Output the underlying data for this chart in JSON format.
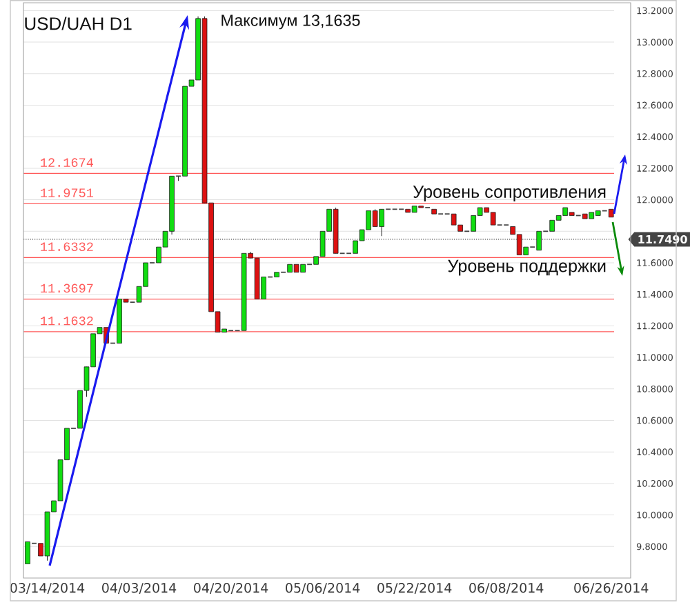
{
  "chart_data": {
    "type": "candlestick",
    "title": "USD/UAH D1",
    "categories": [
      null,
      null,
      null,
      "03/14/2014",
      null,
      null,
      null,
      null,
      null,
      null,
      null,
      null,
      null,
      null,
      null,
      null,
      null,
      "04/03/2014",
      null,
      null,
      null,
      null,
      null,
      null,
      null,
      null,
      null,
      null,
      null,
      null,
      null,
      "04/20/2014",
      null,
      null,
      null,
      null,
      null,
      null,
      null,
      null,
      null,
      null,
      null,
      null,
      null,
      "05/06/2014",
      null,
      null,
      null,
      null,
      null,
      null,
      null,
      null,
      null,
      null,
      null,
      null,
      null,
      "05/22/2014",
      null,
      null,
      null,
      null,
      null,
      null,
      null,
      null,
      null,
      null,
      null,
      null,
      null,
      "06/08/2014",
      null,
      null,
      null,
      null,
      null,
      null,
      null,
      null,
      null,
      null,
      null,
      null,
      null,
      null,
      null,
      "06/26/2014"
    ],
    "ohlc": [
      [
        9.69,
        9.83,
        9.69,
        9.83
      ],
      [
        9.82,
        9.82,
        9.82,
        9.82
      ],
      [
        9.82,
        9.82,
        9.74,
        9.74
      ],
      [
        9.74,
        10.02,
        9.71,
        10.02
      ],
      [
        10.02,
        10.09,
        10.02,
        10.09
      ],
      [
        10.09,
        10.35,
        10.09,
        10.35
      ],
      [
        10.35,
        10.55,
        10.35,
        10.55
      ],
      [
        10.55,
        10.55,
        10.55,
        10.55
      ],
      [
        10.55,
        10.79,
        10.55,
        10.79
      ],
      [
        10.79,
        10.94,
        10.75,
        10.94
      ],
      [
        10.94,
        11.15,
        10.94,
        11.15
      ],
      [
        11.15,
        11.19,
        11.15,
        11.19
      ],
      [
        11.19,
        11.19,
        11.09,
        11.09
      ],
      [
        11.09,
        11.09,
        11.09,
        11.09
      ],
      [
        11.09,
        11.37,
        11.09,
        11.37
      ],
      [
        11.37,
        11.37,
        11.35,
        11.35
      ],
      [
        11.35,
        11.35,
        11.35,
        11.35
      ],
      [
        11.35,
        11.45,
        11.35,
        11.45
      ],
      [
        11.45,
        11.6,
        11.45,
        11.6
      ],
      [
        11.6,
        11.6,
        11.6,
        11.6
      ],
      [
        11.6,
        11.7,
        11.6,
        11.7
      ],
      [
        11.7,
        11.8,
        11.7,
        11.8
      ],
      [
        11.8,
        12.15,
        11.78,
        12.15
      ],
      [
        12.15,
        12.15,
        12.12,
        12.15
      ],
      [
        12.15,
        12.72,
        12.15,
        12.72
      ],
      [
        12.72,
        12.76,
        12.72,
        12.76
      ],
      [
        12.76,
        13.1635,
        12.76,
        13.15
      ],
      [
        13.15,
        13.1635,
        11.98,
        11.98
      ],
      [
        11.98,
        11.98,
        11.29,
        11.29
      ],
      [
        11.29,
        11.29,
        11.16,
        11.16
      ],
      [
        11.16,
        11.18,
        11.16,
        11.18
      ],
      [
        11.17,
        11.17,
        11.17,
        11.17
      ],
      [
        11.17,
        11.17,
        11.17,
        11.17
      ],
      [
        11.17,
        11.66,
        11.17,
        11.66
      ],
      [
        11.66,
        11.67,
        11.63,
        11.63
      ],
      [
        11.63,
        11.63,
        11.37,
        11.37
      ],
      [
        11.37,
        11.51,
        11.37,
        11.51
      ],
      [
        11.51,
        11.51,
        11.51,
        11.51
      ],
      [
        11.51,
        11.54,
        11.51,
        11.54
      ],
      [
        11.54,
        11.54,
        11.54,
        11.54
      ],
      [
        11.54,
        11.59,
        11.54,
        11.59
      ],
      [
        11.59,
        11.59,
        11.54,
        11.54
      ],
      [
        11.54,
        11.59,
        11.54,
        11.59
      ],
      [
        11.59,
        11.59,
        11.59,
        11.59
      ],
      [
        11.59,
        11.64,
        11.59,
        11.64
      ],
      [
        11.64,
        11.8,
        11.64,
        11.8
      ],
      [
        11.8,
        11.94,
        11.8,
        11.94
      ],
      [
        11.94,
        11.95,
        11.66,
        11.66
      ],
      [
        11.66,
        11.66,
        11.66,
        11.66
      ],
      [
        11.66,
        11.66,
        11.66,
        11.66
      ],
      [
        11.66,
        11.74,
        11.66,
        11.74
      ],
      [
        11.74,
        11.81,
        11.74,
        11.81
      ],
      [
        11.81,
        11.93,
        11.81,
        11.93
      ],
      [
        11.93,
        11.94,
        11.83,
        11.83
      ],
      [
        11.83,
        11.94,
        11.77,
        11.94
      ],
      [
        11.94,
        11.94,
        11.94,
        11.94
      ],
      [
        11.94,
        11.94,
        11.94,
        11.94
      ],
      [
        11.94,
        11.94,
        11.94,
        11.94
      ],
      [
        11.94,
        11.94,
        11.92,
        11.92
      ],
      [
        11.92,
        11.96,
        11.92,
        11.96
      ],
      [
        11.96,
        11.96,
        11.95,
        11.95
      ],
      [
        11.95,
        11.95,
        11.95,
        11.95
      ],
      [
        11.94,
        11.94,
        11.91,
        11.91
      ],
      [
        11.91,
        11.91,
        11.91,
        11.91
      ],
      [
        11.91,
        11.91,
        11.91,
        11.91
      ],
      [
        11.91,
        11.91,
        11.84,
        11.84
      ],
      [
        11.84,
        11.84,
        11.8,
        11.8
      ],
      [
        11.8,
        11.8,
        11.8,
        11.8
      ],
      [
        11.8,
        11.9,
        11.8,
        11.9
      ],
      [
        11.9,
        11.95,
        11.9,
        11.95
      ],
      [
        11.95,
        11.95,
        11.92,
        11.92
      ],
      [
        11.92,
        11.92,
        11.84,
        11.84
      ],
      [
        11.84,
        11.84,
        11.84,
        11.84
      ],
      [
        11.84,
        11.84,
        11.84,
        11.84
      ],
      [
        11.83,
        11.83,
        11.78,
        11.78
      ],
      [
        11.78,
        11.78,
        11.65,
        11.65
      ],
      [
        11.65,
        11.7,
        11.65,
        11.7
      ],
      [
        11.7,
        11.7,
        11.7,
        11.7
      ],
      [
        11.68,
        11.8,
        11.68,
        11.8
      ],
      [
        11.8,
        11.8,
        11.8,
        11.8
      ],
      [
        11.8,
        11.87,
        11.8,
        11.87
      ],
      [
        11.87,
        11.9,
        11.87,
        11.9
      ],
      [
        11.9,
        11.95,
        11.9,
        11.95
      ],
      [
        11.92,
        11.92,
        11.9,
        11.9
      ],
      [
        11.9,
        11.9,
        11.9,
        11.9
      ],
      [
        11.91,
        11.91,
        11.88,
        11.88
      ],
      [
        11.88,
        11.92,
        11.88,
        11.92
      ],
      [
        11.9,
        11.93,
        11.9,
        11.93
      ],
      [
        11.93,
        11.93,
        11.93,
        11.93
      ],
      [
        11.94,
        11.94,
        11.89,
        11.89
      ]
    ],
    "colors": [
      "#11dd11",
      "#444444",
      "#dd1111",
      "#11dd11",
      "#11dd11",
      "#11dd11",
      "#11dd11",
      "#444444",
      "#11dd11",
      "#11dd11",
      "#11dd11",
      "#11dd11",
      "#dd1111",
      "#444444",
      "#11dd11",
      "#dd1111",
      "#444444",
      "#11dd11",
      "#11dd11",
      "#444444",
      "#11dd11",
      "#11dd11",
      "#11dd11",
      "#444444",
      "#11dd11",
      "#11dd11",
      "#11dd11",
      "#dd1111",
      "#dd1111",
      "#dd1111",
      "#11dd11",
      "#444444",
      "#444444",
      "#11dd11",
      "#dd1111",
      "#dd1111",
      "#11dd11",
      "#444444",
      "#11dd11",
      "#444444",
      "#11dd11",
      "#dd1111",
      "#11dd11",
      "#444444",
      "#11dd11",
      "#11dd11",
      "#11dd11",
      "#dd1111",
      "#444444",
      "#444444",
      "#11dd11",
      "#11dd11",
      "#11dd11",
      "#dd1111",
      "#11dd11",
      "#444444",
      "#444444",
      "#444444",
      "#dd1111",
      "#11dd11",
      "#dd1111",
      "#444444",
      "#dd1111",
      "#444444",
      "#444444",
      "#dd1111",
      "#dd1111",
      "#444444",
      "#11dd11",
      "#11dd11",
      "#dd1111",
      "#dd1111",
      "#444444",
      "#444444",
      "#dd1111",
      "#dd1111",
      "#11dd11",
      "#444444",
      "#11dd11",
      "#444444",
      "#11dd11",
      "#11dd11",
      "#11dd11",
      "#dd1111",
      "#444444",
      "#dd1111",
      "#11dd11",
      "#11dd11",
      "#444444",
      "#dd1111"
    ],
    "ylim": [
      9.6,
      13.25
    ],
    "yticks": [
      {
        "value": 9.8,
        "label": "9.8000"
      },
      {
        "value": 10.0,
        "label": "10.0000"
      },
      {
        "value": 10.2,
        "label": "10.2000"
      },
      {
        "value": 10.4,
        "label": "10.4000"
      },
      {
        "value": 10.6,
        "label": "10.6000"
      },
      {
        "value": 10.8,
        "label": "10.8000"
      },
      {
        "value": 11.0,
        "label": "11.0000"
      },
      {
        "value": 11.2,
        "label": "11.2000"
      },
      {
        "value": 11.4,
        "label": "11.4000"
      },
      {
        "value": 11.6,
        "label": "11.6000"
      },
      {
        "value": 11.8,
        "label": null
      },
      {
        "value": 12.0,
        "label": "12.0000"
      },
      {
        "value": 12.2,
        "label": "12.2000"
      },
      {
        "value": 12.4,
        "label": "12.4000"
      },
      {
        "value": 12.6,
        "label": "12.6000"
      },
      {
        "value": 12.8,
        "label": "12.8000"
      },
      {
        "value": 13.0,
        "label": "13.0000"
      },
      {
        "value": 13.2,
        "label": "13.2000"
      }
    ],
    "grid": "y",
    "ref_lines": [
      {
        "axis": "y",
        "value": 12.1674,
        "label": "12.1674",
        "color": "#ff5a5a"
      },
      {
        "axis": "y",
        "value": 11.9751,
        "label": "11.9751",
        "color": "#ff5a5a"
      },
      {
        "axis": "y",
        "value": 11.6332,
        "label": "11.6332",
        "color": "#ff5a5a"
      },
      {
        "axis": "y",
        "value": 11.3697,
        "label": "11.3697",
        "color": "#ff5a5a"
      },
      {
        "axis": "y",
        "value": 11.1632,
        "label": "11.1632",
        "color": "#ff5a5a"
      },
      {
        "axis": "y",
        "value": 11.749,
        "label": "11.7490",
        "color": "#444444",
        "line_style": "dotted"
      }
    ],
    "annotations": [
      "Максимум 13,1635",
      {
        "text": "Уровень сопротивления",
        "y": 11.9751
      },
      {
        "text": "Уровень поддержки",
        "y": 11.6332
      }
    ]
  }
}
